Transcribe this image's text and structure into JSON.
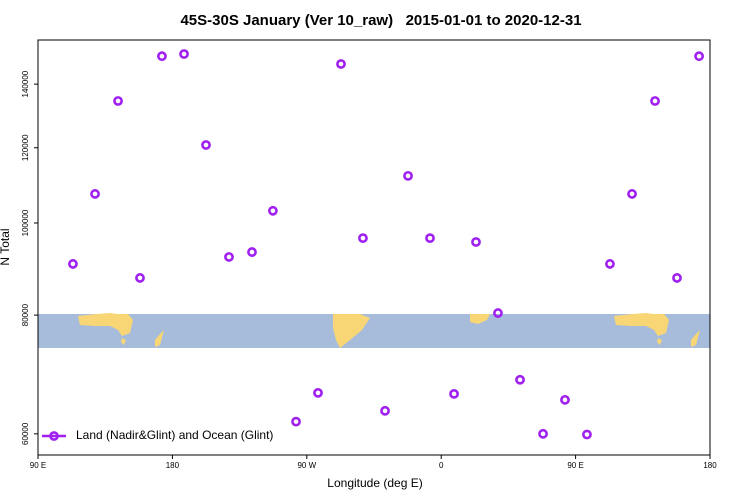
{
  "chart_data": {
    "type": "scatter",
    "title": "45S-30S January (Ver 10_raw)   2015-01-01 to 2020-12-31",
    "x_label": "Longitude (deg E)",
    "y_label": "N Total",
    "xlim": [
      90,
      540
    ],
    "xticks": [
      {
        "value": 90,
        "label": "90 E"
      },
      180,
      {
        "value": 270,
        "label": "90 W"
      },
      {
        "value": 360,
        "label": "0"
      },
      {
        "value": 450,
        "label": "90 E"
      },
      {
        "value": 540,
        "label": "180"
      }
    ],
    "ylim": [
      57000,
      155800
    ],
    "yscale": "log",
    "yticks": [
      60000,
      80000,
      100000,
      120000,
      140000
    ],
    "legend": "bottom-left",
    "series": [
      {
        "name": "Land (Nadir&Glint) and Ocean (Glint)",
        "color": "#a020f0",
        "x": [
          113.4,
          128.2,
          143.6,
          158.3,
          173.0,
          187.8,
          202.5,
          217.9,
          233.3,
          247.3,
          262.8,
          277.5,
          292.9,
          307.6,
          322.4,
          337.8,
          352.5,
          368.6,
          383.3,
          398.0,
          412.8,
          428.2,
          442.9,
          457.6,
          473.0,
          487.8,
          503.2,
          517.9,
          532.7
        ],
        "values": [
          90560,
          107300,
          134400,
          87540,
          149800,
          150600,
          120800,
          92100,
          93200,
          103000,
          61800,
          66260,
          147000,
          96400,
          63440,
          112100,
          96400,
          66100,
          95500,
          80400,
          68400,
          60000,
          65150,
          59900,
          90560,
          107300,
          134400,
          87540,
          149800
        ]
      }
    ]
  }
}
